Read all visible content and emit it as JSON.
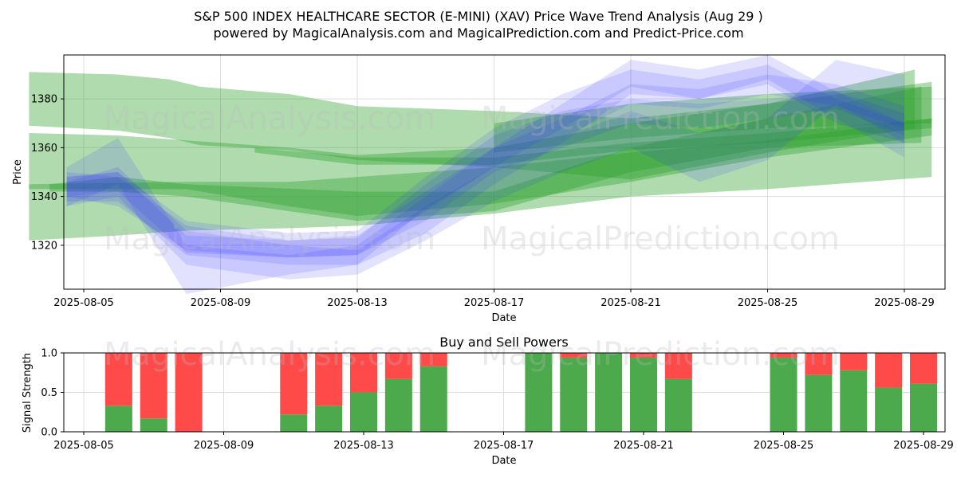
{
  "figure": {
    "title_line1": "S&P 500 INDEX HEALTHCARE SECTOR (E-MINI) (XAV) Price Wave Trend Analysis (Aug 29 )",
    "title_line2": "powered by MagicalAnalysis.com and MagicalPrediction.com and Predict-Price.com",
    "watermarks": [
      "MagicalAnalysis.com",
      "MagicalPrediction.com"
    ]
  },
  "chart_data": [
    {
      "type": "area",
      "xlabel": "Date",
      "ylabel": "Price",
      "x_range": [
        "2025-08-03",
        "2025-08-30"
      ],
      "ylim": [
        1302,
        1398
      ],
      "yticks": [
        1320,
        1340,
        1360,
        1380
      ],
      "xticks": [
        "2025-08-05",
        "2025-08-09",
        "2025-08-13",
        "2025-08-17",
        "2025-08-21",
        "2025-08-25",
        "2025-08-29"
      ],
      "grid": true,
      "colors": {
        "green_band": "#2ca02c",
        "blue_band": "#3333ff"
      },
      "green_bands": [
        {
          "x": [
            "2025-08-03.4",
            "2025-08-06",
            "2025-08-07.5",
            "2025-08-08.4",
            "2025-08-11",
            "2025-08-13",
            "2025-08-17",
            "2025-08-21",
            "2025-08-25",
            "2025-08-29.3"
          ],
          "upper": [
            1391,
            1390,
            1388,
            1385,
            1382,
            1377,
            1375,
            1372,
            1378,
            1392
          ],
          "lower": [
            1369,
            1367,
            1364,
            1361,
            1359,
            1355,
            1352,
            1347,
            1358,
            1368
          ]
        },
        {
          "x": [
            "2025-08-03.4",
            "2025-08-06",
            "2025-08-08",
            "2025-08-11",
            "2025-08-13",
            "2025-08-17",
            "2025-08-21",
            "2025-08-25",
            "2025-08-29.8"
          ],
          "upper": [
            1366,
            1365,
            1363,
            1360,
            1357,
            1360,
            1370,
            1378,
            1387
          ],
          "lower": [
            1322,
            1324,
            1326,
            1327,
            1328,
            1333,
            1340,
            1343,
            1348
          ]
        },
        {
          "x": [
            "2025-08-03.4",
            "2025-08-08",
            "2025-08-11",
            "2025-08-13",
            "2025-08-17",
            "2025-08-21",
            "2025-08-25",
            "2025-08-29.8"
          ],
          "upper": [
            1345,
            1346,
            1346,
            1348,
            1352,
            1358,
            1363,
            1372
          ],
          "lower": [
            1343,
            1343,
            1336,
            1332,
            1337,
            1346,
            1356,
            1365
          ]
        },
        {
          "x": [
            "2025-08-10",
            "2025-08-13",
            "2025-08-17",
            "2025-08-21",
            "2025-08-25",
            "2025-08-29.8"
          ],
          "upper": [
            1360,
            1356,
            1356,
            1362,
            1366,
            1372
          ],
          "lower": [
            1358,
            1353,
            1353,
            1359,
            1362,
            1368
          ]
        },
        {
          "x": [
            "2025-08-04",
            "2025-08-06",
            "2025-08-08",
            "2025-08-13",
            "2025-08-17",
            "2025-08-21",
            "2025-08-25",
            "2025-08-29.5"
          ],
          "upper": [
            1345,
            1348,
            1345,
            1342,
            1342,
            1360,
            1372,
            1385
          ],
          "lower": [
            1342,
            1342,
            1340,
            1330,
            1334,
            1350,
            1360,
            1362
          ]
        },
        {
          "x": [
            "2025-08-17",
            "2025-08-21",
            "2025-08-25",
            "2025-08-29.8"
          ],
          "upper": [
            1370,
            1378,
            1382,
            1385
          ],
          "lower": [
            1358,
            1364,
            1368,
            1370
          ]
        }
      ],
      "blue_bands": [
        {
          "x": [
            "2025-08-04.5",
            "2025-08-06",
            "2025-08-08",
            "2025-08-11",
            "2025-08-13",
            "2025-08-15",
            "2025-08-17",
            "2025-08-19",
            "2025-08-21",
            "2025-08-23",
            "2025-08-25",
            "2025-08-27",
            "2025-08-29"
          ],
          "upper": [
            1350,
            1348,
            1328,
            1322,
            1323,
            1345,
            1365,
            1375,
            1380,
            1378,
            1380,
            1383,
            1374
          ],
          "lower": [
            1340,
            1336,
            1318,
            1315,
            1316,
            1330,
            1350,
            1360,
            1370,
            1368,
            1372,
            1376,
            1365
          ]
        },
        {
          "x": [
            "2025-08-04.5",
            "2025-08-06",
            "2025-08-08",
            "2025-08-11",
            "2025-08-13",
            "2025-08-15",
            "2025-08-17",
            "2025-08-19",
            "2025-08-21",
            "2025-08-23",
            "2025-08-25",
            "2025-08-27",
            "2025-08-29"
          ],
          "upper": [
            1352,
            1364,
            1320,
            1316,
            1320,
            1340,
            1360,
            1378,
            1396,
            1392,
            1398,
            1383,
            1370
          ],
          "lower": [
            1336,
            1345,
            1300,
            1308,
            1312,
            1325,
            1345,
            1362,
            1382,
            1380,
            1388,
            1372,
            1356
          ]
        },
        {
          "x": [
            "2025-08-04.5",
            "2025-08-06",
            "2025-08-08",
            "2025-08-11",
            "2025-08-13",
            "2025-08-15",
            "2025-08-17",
            "2025-08-19",
            "2025-08-21",
            "2025-08-23",
            "2025-08-25",
            "2025-08-27",
            "2025-08-29"
          ],
          "upper": [
            1348,
            1350,
            1330,
            1325,
            1326,
            1348,
            1368,
            1382,
            1392,
            1388,
            1394,
            1380,
            1370
          ],
          "lower": [
            1338,
            1338,
            1316,
            1312,
            1312,
            1335,
            1352,
            1368,
            1385,
            1380,
            1386,
            1370,
            1362
          ]
        },
        {
          "x": [
            "2025-08-04.5",
            "2025-08-06",
            "2025-08-08",
            "2025-08-11",
            "2025-08-13",
            "2025-08-15",
            "2025-08-17",
            "2025-08-19",
            "2025-08-21",
            "2025-08-23",
            "2025-08-25",
            "2025-08-27",
            "2025-08-29"
          ],
          "upper": [
            1346,
            1352,
            1326,
            1320,
            1318,
            1336,
            1352,
            1364,
            1375,
            1366,
            1372,
            1396,
            1390
          ],
          "lower": [
            1336,
            1340,
            1312,
            1306,
            1308,
            1322,
            1338,
            1350,
            1360,
            1346,
            1355,
            1378,
            1362
          ]
        },
        {
          "x": [
            "2025-08-04.5",
            "2025-08-06",
            "2025-08-08",
            "2025-08-11",
            "2025-08-13",
            "2025-08-15",
            "2025-08-17",
            "2025-08-19",
            "2025-08-21",
            "2025-08-23",
            "2025-08-25",
            "2025-08-27",
            "2025-08-29"
          ],
          "upper": [
            1348,
            1350,
            1324,
            1322,
            1324,
            1342,
            1360,
            1372,
            1386,
            1384,
            1390,
            1386,
            1377
          ],
          "lower": [
            1340,
            1342,
            1317,
            1315,
            1316,
            1334,
            1352,
            1364,
            1378,
            1376,
            1382,
            1377,
            1368
          ]
        }
      ]
    },
    {
      "type": "bar",
      "title": "Buy and Sell Powers",
      "xlabel": "Date",
      "ylabel": "Signal Strength",
      "ylim": [
        0,
        1.0
      ],
      "yticks": [
        "0.0",
        "0.5",
        "1.0"
      ],
      "xticks": [
        "2025-08-05",
        "2025-08-09",
        "2025-08-13",
        "2025-08-17",
        "2025-08-21",
        "2025-08-25",
        "2025-08-29"
      ],
      "colors": {
        "buy": "#4caa4c",
        "sell": "#ff4a4a"
      },
      "series": [
        {
          "date": "2025-08-06",
          "buy": 0.33,
          "sell": 0.67
        },
        {
          "date": "2025-08-07",
          "buy": 0.17,
          "sell": 0.83
        },
        {
          "date": "2025-08-08",
          "buy": 0.0,
          "sell": 1.0
        },
        {
          "date": "2025-08-11",
          "buy": 0.22,
          "sell": 0.78
        },
        {
          "date": "2025-08-12",
          "buy": 0.33,
          "sell": 0.67
        },
        {
          "date": "2025-08-13",
          "buy": 0.5,
          "sell": 0.5
        },
        {
          "date": "2025-08-14",
          "buy": 0.67,
          "sell": 0.33
        },
        {
          "date": "2025-08-15",
          "buy": 0.83,
          "sell": 0.17
        },
        {
          "date": "2025-08-18",
          "buy": 1.0,
          "sell": 0.0
        },
        {
          "date": "2025-08-19",
          "buy": 0.94,
          "sell": 0.06
        },
        {
          "date": "2025-08-20",
          "buy": 1.0,
          "sell": 0.0
        },
        {
          "date": "2025-08-21",
          "buy": 0.94,
          "sell": 0.06
        },
        {
          "date": "2025-08-22",
          "buy": 0.67,
          "sell": 0.33
        },
        {
          "date": "2025-08-25",
          "buy": 0.94,
          "sell": 0.06
        },
        {
          "date": "2025-08-26",
          "buy": 0.72,
          "sell": 0.28
        },
        {
          "date": "2025-08-27",
          "buy": 0.78,
          "sell": 0.22
        },
        {
          "date": "2025-08-28",
          "buy": 0.56,
          "sell": 0.44
        },
        {
          "date": "2025-08-29",
          "buy": 0.61,
          "sell": 0.39
        }
      ]
    }
  ]
}
